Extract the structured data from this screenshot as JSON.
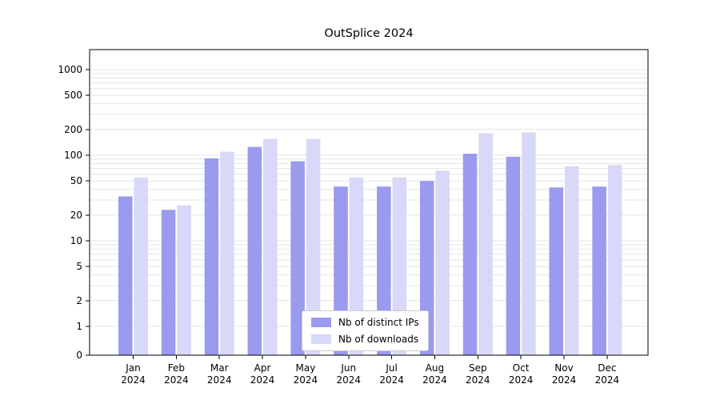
{
  "chart_data": {
    "type": "bar",
    "title": "OutSplice 2024",
    "x_year": "2024",
    "categories": [
      "Jan",
      "Feb",
      "Mar",
      "Apr",
      "May",
      "Jun",
      "Jul",
      "Aug",
      "Sep",
      "Oct",
      "Nov",
      "Dec"
    ],
    "series": [
      {
        "name": "Nb of distinct IPs",
        "color": "#9a9aee",
        "values": [
          33,
          23,
          92,
          125,
          85,
          43,
          43,
          50,
          104,
          96,
          42,
          43
        ]
      },
      {
        "name": "Nb of downloads",
        "color": "#d8d8f8",
        "values": [
          55,
          26,
          110,
          155,
          155,
          55,
          55,
          66,
          180,
          185,
          74,
          77
        ]
      }
    ],
    "yticks": [
      0,
      1,
      2,
      5,
      10,
      20,
      50,
      100,
      200,
      500,
      1000
    ],
    "yscale": "symlog",
    "ylim": [
      0,
      1900
    ],
    "grid": "horizontal",
    "legend_position": "lower center"
  }
}
